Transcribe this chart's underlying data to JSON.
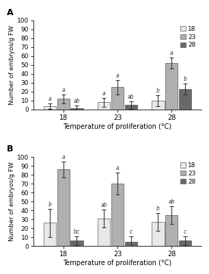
{
  "panel_A": {
    "groups": [
      "18",
      "23",
      "28"
    ],
    "series": {
      "18": {
        "values": [
          4,
          8,
          10
        ],
        "errors": [
          3,
          5,
          6
        ]
      },
      "23": {
        "values": [
          12,
          25,
          52
        ],
        "errors": [
          5,
          8,
          6
        ]
      },
      "28": {
        "values": [
          1.5,
          5,
          23
        ],
        "errors": [
          3,
          4,
          6
        ]
      }
    },
    "letters": {
      "18": [
        "a",
        "a",
        "b"
      ],
      "23": [
        "a",
        "a",
        "a"
      ],
      "28": [
        "ab",
        "ab",
        "b"
      ]
    }
  },
  "panel_B": {
    "groups": [
      "18",
      "23",
      "28"
    ],
    "series": {
      "18": {
        "values": [
          26,
          31,
          27
        ],
        "errors": [
          16,
          10,
          10
        ]
      },
      "23": {
        "values": [
          86,
          70,
          35
        ],
        "errors": [
          9,
          12,
          10
        ]
      },
      "28": {
        "values": [
          6,
          5,
          6
        ],
        "errors": [
          5,
          6,
          5
        ]
      }
    },
    "letters": {
      "18": [
        "b",
        "ab",
        "b"
      ],
      "23": [
        "a",
        "a",
        "ab"
      ],
      "28": [
        "bc",
        "c",
        "c"
      ]
    }
  },
  "ylabel": "Number of embryos/g FW",
  "xlabel": "Temperature of proliferation (°C)",
  "ylim": [
    0,
    100
  ],
  "yticks": [
    0,
    10,
    20,
    30,
    40,
    50,
    60,
    70,
    80,
    90,
    100
  ],
  "legend_labels": [
    "18",
    "23",
    "28"
  ],
  "colors": [
    "#e8e8e8",
    "#b0b0b0",
    "#686868"
  ],
  "bar_width": 0.25,
  "panel_labels": [
    "A",
    "B"
  ],
  "background_color": "#ffffff",
  "edge_color": "#555555"
}
